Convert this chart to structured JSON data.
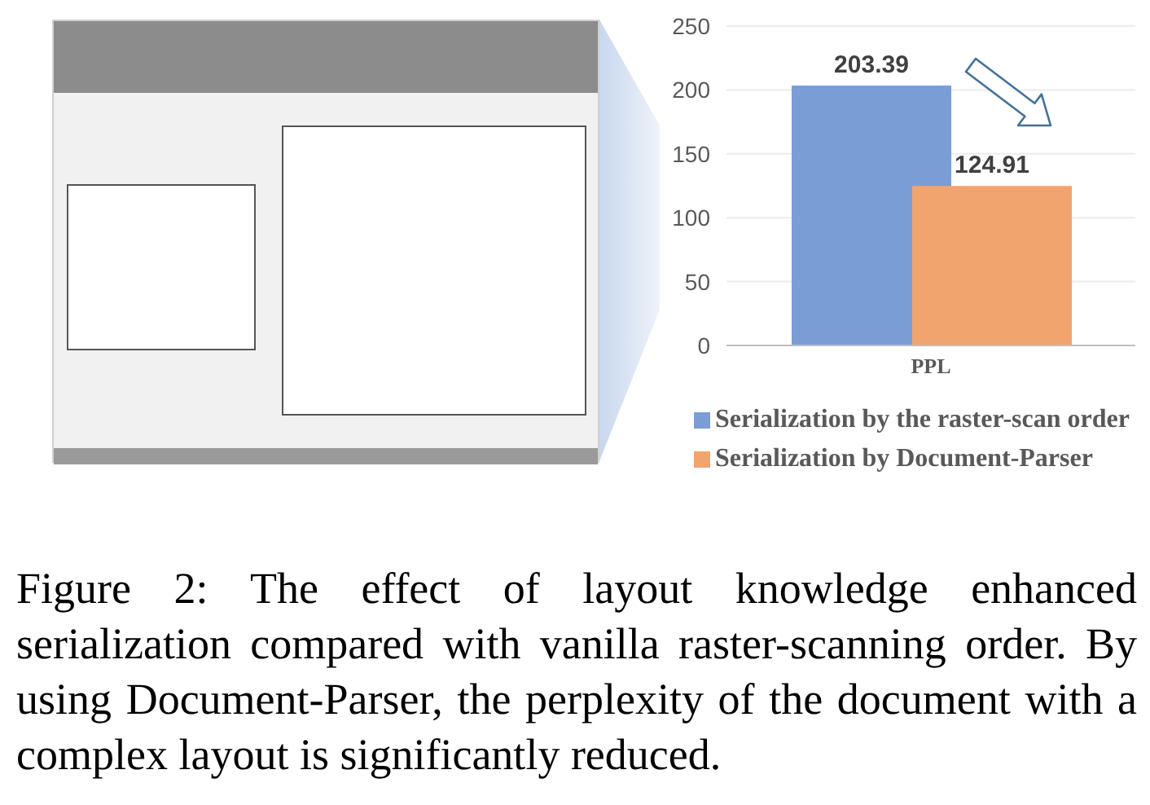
{
  "chart_data": {
    "type": "bar",
    "categories": [
      "PPL"
    ],
    "series": [
      {
        "name": "Serialization by the raster-scan order",
        "color": "#7b9dd6",
        "values": [
          203.39
        ]
      },
      {
        "name": "Serialization by Document-Parser",
        "color": "#f2a46f",
        "values": [
          124.91
        ]
      }
    ],
    "ylim": [
      0,
      250
    ],
    "yticks": [
      0,
      50,
      100,
      150,
      200,
      250
    ],
    "grid": "y",
    "legend": "bottom",
    "data_labels": true,
    "annotations": [
      "Figure 2: The effect of layout knowledge enhanced serialization compared with vanilla raster-scanning order. By using Document-Parser, the perplexity of the document with a complex layout is significantly reduced."
    ]
  }
}
